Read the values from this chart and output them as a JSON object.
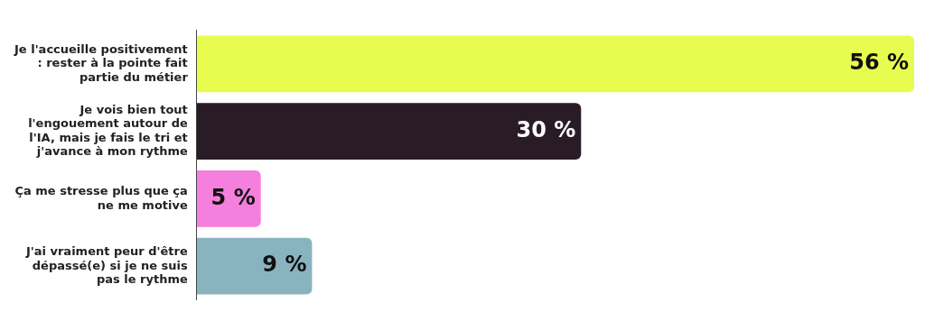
{
  "chart_data": {
    "type": "bar",
    "orientation": "horizontal",
    "categories": [
      "Je l'accueille positivement : rester à la pointe fait partie du métier",
      "Je vois bien tout l'engouement autour de l'IA, mais je fais le tri et j'avance à mon rythme",
      "Ça me stresse plus que ça ne me motive",
      "J'ai vraiment peur d'être dépassé(e) si je ne suis pas le rythme"
    ],
    "values": [
      56,
      30,
      5,
      9
    ],
    "colors": [
      "#e8fc50",
      "#2a1c26",
      "#f47fdc",
      "#8ab3c0"
    ],
    "value_labels": [
      "56 %",
      "30 %",
      "5 %",
      "9 %"
    ],
    "xlim": [
      0,
      56
    ],
    "tick_labels": "y",
    "grid": false,
    "legend": false
  }
}
